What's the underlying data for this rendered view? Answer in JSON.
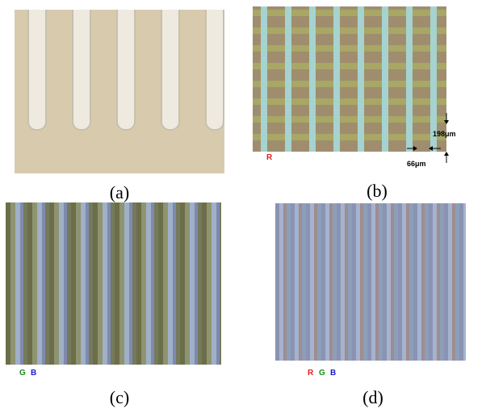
{
  "panels": [
    {
      "label": "(a)"
    },
    {
      "label": "(b)",
      "marks": [
        "R"
      ],
      "dimensions": [
        "198μm",
        "66μm"
      ]
    },
    {
      "label": "(c)",
      "marks": [
        "G",
        "B"
      ]
    },
    {
      "label": "(d)",
      "marks": [
        "R",
        "G",
        "B"
      ]
    }
  ]
}
